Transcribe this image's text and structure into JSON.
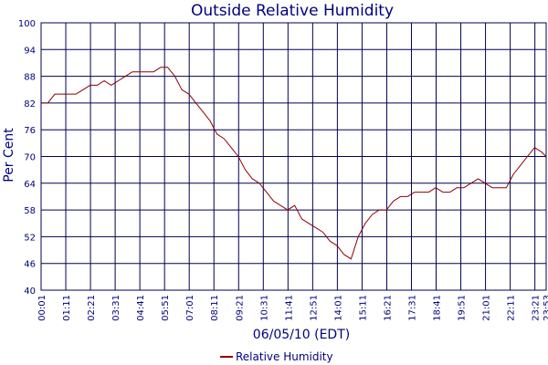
{
  "chart_data": {
    "type": "line",
    "title": "Outside Relative Humidity",
    "xlabel": "06/05/10 (EDT)",
    "ylabel": "Per Cent",
    "ylim": [
      40,
      100
    ],
    "y_ticks": [
      "40",
      "46",
      "52",
      "58",
      "64",
      "70",
      "76",
      "82",
      "88",
      "94",
      "100"
    ],
    "x_ticks": [
      "00:01",
      "01:11",
      "02:21",
      "03:31",
      "04:41",
      "05:51",
      "07:01",
      "08:11",
      "09:21",
      "10:31",
      "11:41",
      "12:51",
      "14:01",
      "15:11",
      "16:21",
      "17:31",
      "18:41",
      "19:51",
      "21:01",
      "22:11",
      "23:21",
      "23:53"
    ],
    "grid": true,
    "legend_position": "bottom",
    "colors": {
      "series": "#8b0000",
      "grid": "#000050",
      "text": "#000080"
    },
    "series": [
      {
        "name": "Relative Humidity",
        "x": [
          "00:01",
          "00:20",
          "00:40",
          "01:00",
          "01:20",
          "01:40",
          "02:00",
          "02:20",
          "02:40",
          "03:00",
          "03:20",
          "03:40",
          "04:00",
          "04:20",
          "04:40",
          "05:00",
          "05:20",
          "05:40",
          "06:00",
          "06:20",
          "06:40",
          "07:00",
          "07:20",
          "07:40",
          "08:00",
          "08:20",
          "08:40",
          "09:00",
          "09:20",
          "09:40",
          "10:00",
          "10:20",
          "10:40",
          "11:00",
          "11:20",
          "11:40",
          "12:00",
          "12:20",
          "12:40",
          "13:00",
          "13:20",
          "13:40",
          "14:00",
          "14:20",
          "14:40",
          "15:00",
          "15:20",
          "15:40",
          "16:00",
          "16:20",
          "16:40",
          "17:00",
          "17:20",
          "17:40",
          "18:00",
          "18:20",
          "18:40",
          "19:00",
          "19:20",
          "19:40",
          "20:00",
          "20:20",
          "20:40",
          "21:00",
          "21:20",
          "21:40",
          "22:00",
          "22:20",
          "22:40",
          "23:00",
          "23:20",
          "23:40",
          "23:53"
        ],
        "values": [
          82,
          82,
          84,
          84,
          84,
          84,
          85,
          86,
          86,
          87,
          86,
          87,
          88,
          89,
          89,
          89,
          89,
          90,
          90,
          88,
          85,
          84,
          82,
          80,
          78,
          75,
          74,
          72,
          70,
          67,
          65,
          64,
          62,
          60,
          59,
          58,
          59,
          56,
          55,
          54,
          53,
          51,
          50,
          48,
          47,
          52,
          55,
          57,
          58,
          58,
          60,
          61,
          61,
          62,
          62,
          62,
          63,
          62,
          62,
          63,
          63,
          64,
          65,
          64,
          63,
          63,
          63,
          66,
          68,
          70,
          72,
          71,
          70
        ]
      }
    ]
  }
}
